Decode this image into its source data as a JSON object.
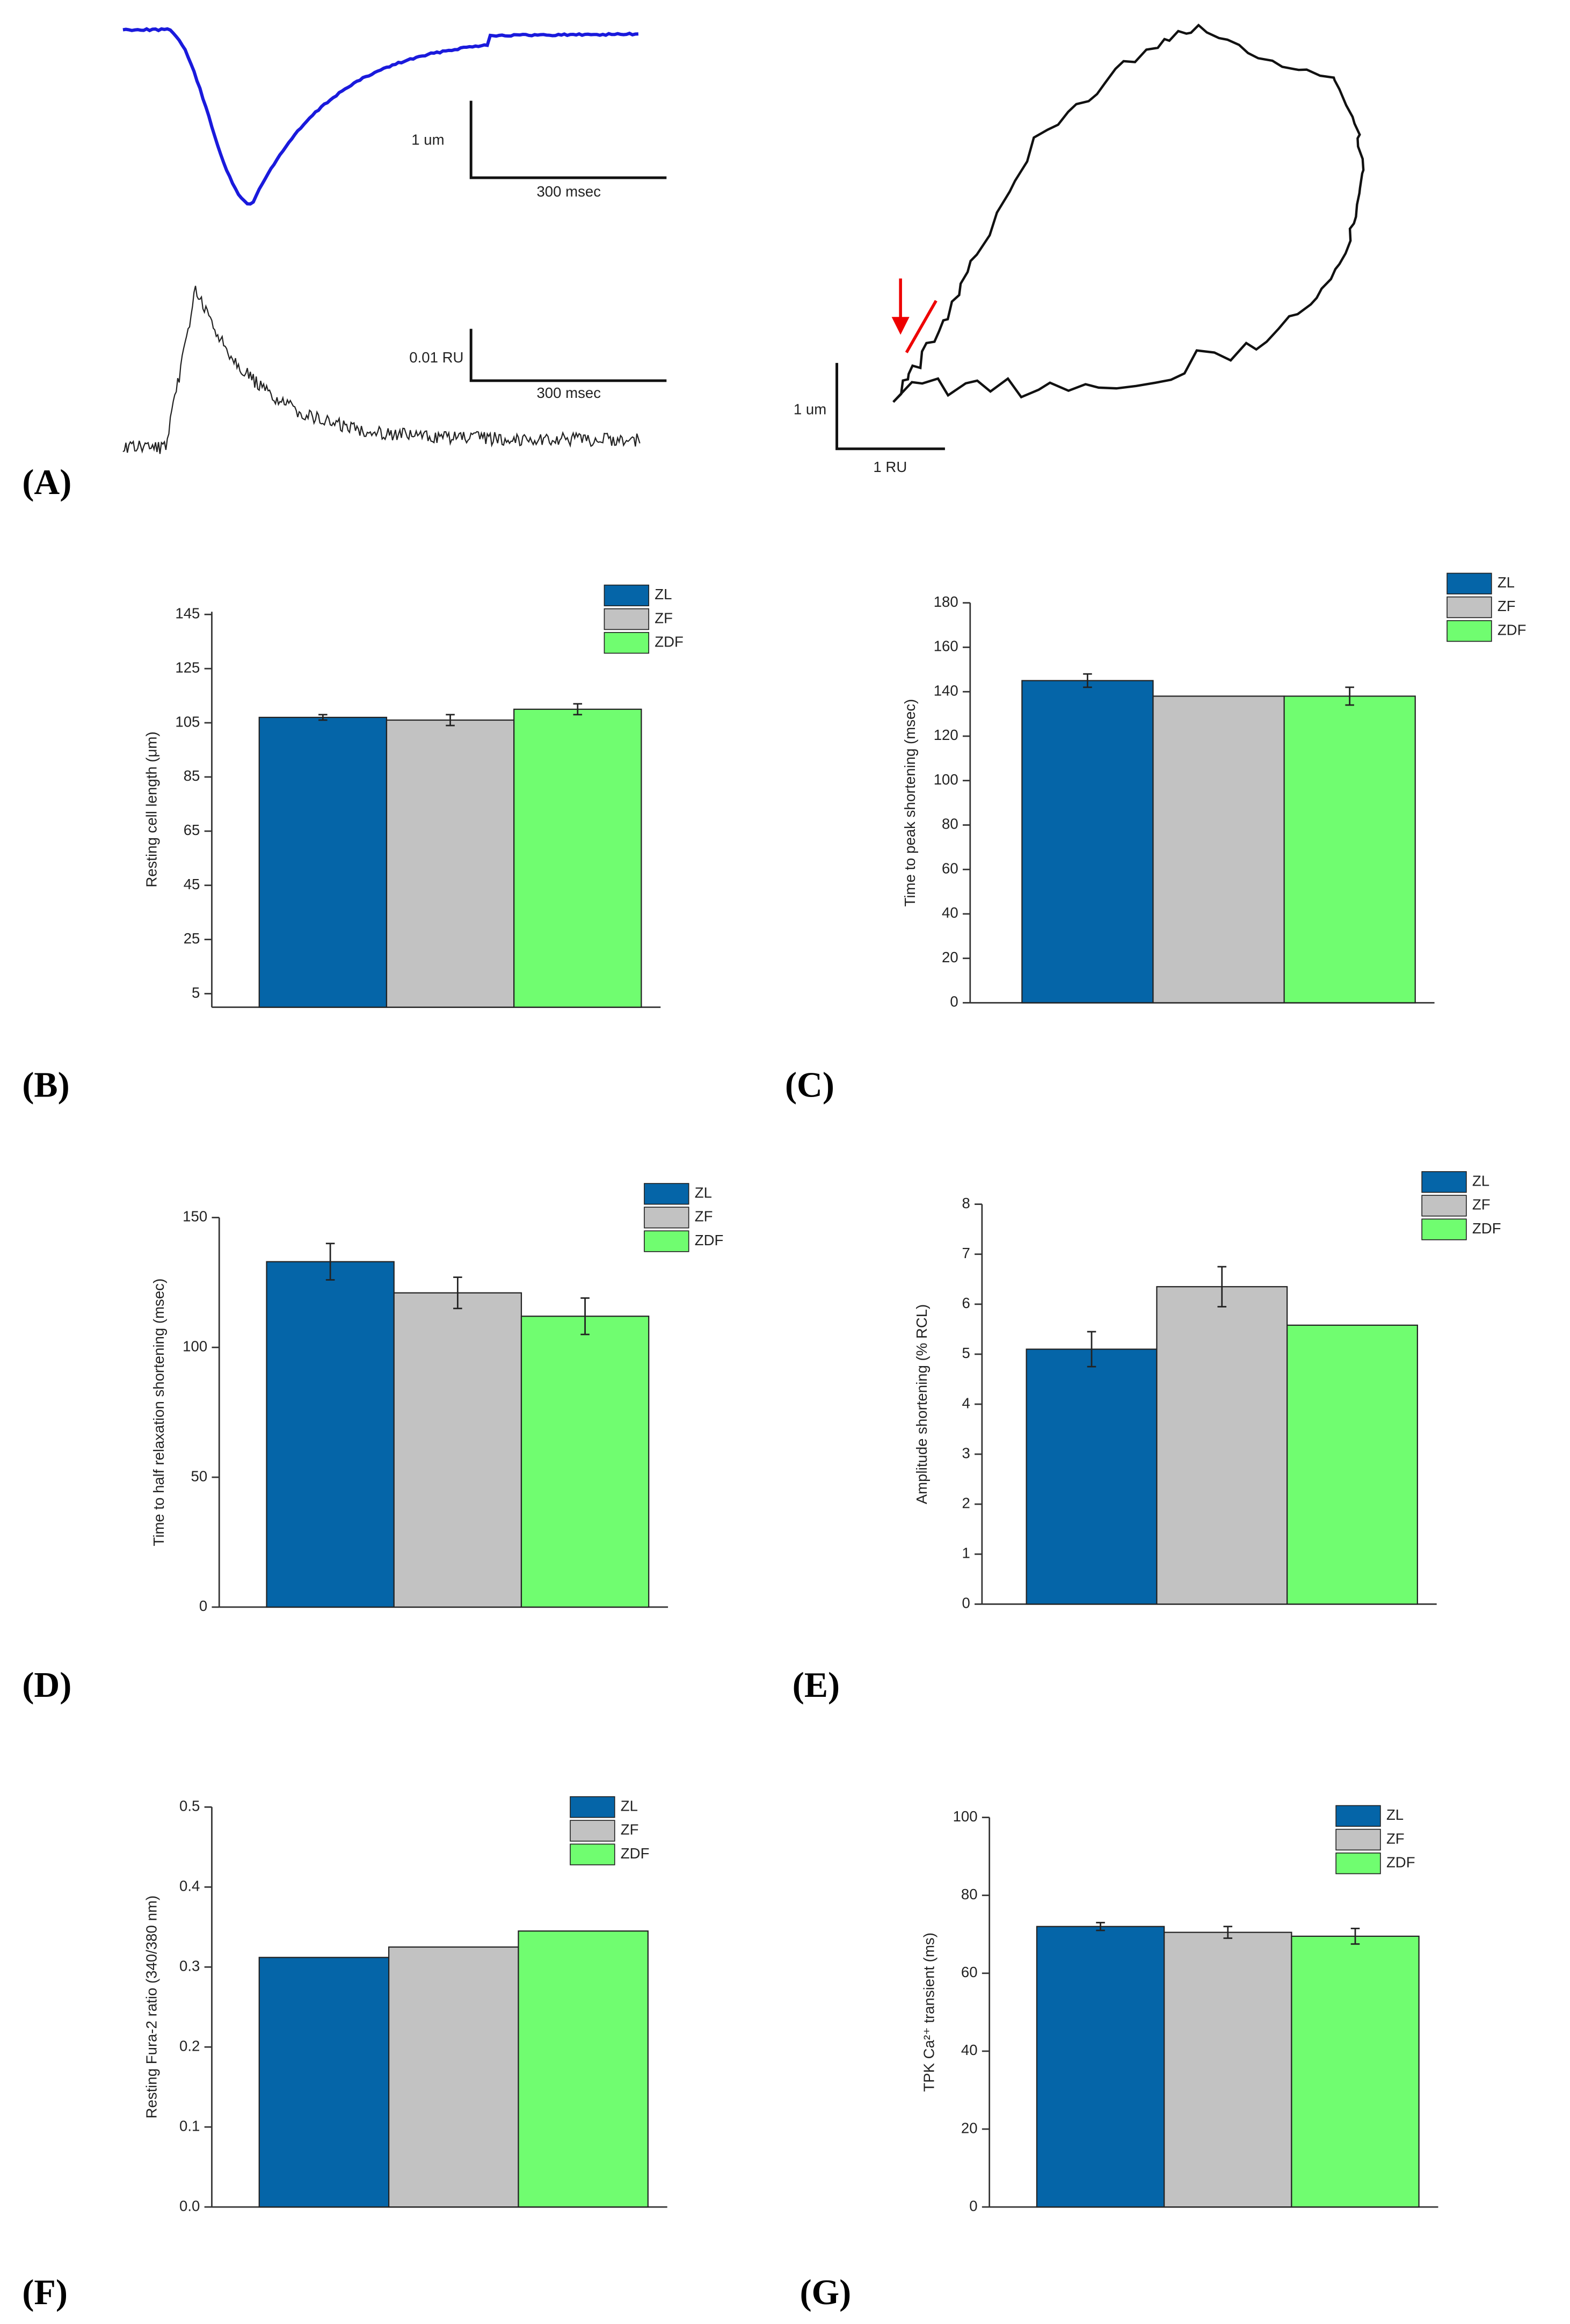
{
  "chart_data": [
    {
      "type": "trace",
      "panel": "(A)",
      "scale_labels": [
        "1 um",
        "300 msec",
        "0.01 RU",
        "300 msec",
        "1 um",
        "1 RU"
      ]
    },
    {
      "type": "bar",
      "panel": "(B)",
      "ylabel": "Resting cell length (μm)",
      "ylim": [
        0,
        146
      ],
      "yticks": [
        5,
        25,
        45,
        65,
        85,
        105,
        125,
        145
      ],
      "series": [
        {
          "name": "ZL",
          "color": "#0565a8",
          "values": [
            107
          ],
          "errors": [
            1
          ]
        },
        {
          "name": "ZF",
          "color": "#c2c2c2",
          "values": [
            106
          ],
          "errors": [
            2
          ]
        },
        {
          "name": "ZDF",
          "color": "#70fd70",
          "values": [
            110
          ],
          "errors": [
            2
          ]
        }
      ]
    },
    {
      "type": "bar",
      "panel": "(C)",
      "ylabel": "Time to peak shortening (msec)",
      "ylim": [
        0,
        180
      ],
      "yticks": [
        0,
        20,
        40,
        60,
        80,
        100,
        120,
        140,
        160,
        180
      ],
      "series": [
        {
          "name": "ZL",
          "color": "#0565a8",
          "values": [
            145
          ],
          "errors": [
            3
          ]
        },
        {
          "name": "ZF",
          "color": "#c2c2c2",
          "values": [
            138
          ],
          "errors": [
            0
          ]
        },
        {
          "name": "ZDF",
          "color": "#70fd70",
          "values": [
            138
          ],
          "errors": [
            4
          ]
        }
      ]
    },
    {
      "type": "bar",
      "panel": "(D)",
      "ylabel": "Time to half relaxation shortening (msec)",
      "ylim": [
        0,
        150
      ],
      "yticks": [
        0,
        50,
        100,
        150
      ],
      "series": [
        {
          "name": "ZL",
          "color": "#0565a8",
          "values": [
            133
          ],
          "errors": [
            7
          ]
        },
        {
          "name": "ZF",
          "color": "#c2c2c2",
          "values": [
            121
          ],
          "errors": [
            6
          ]
        },
        {
          "name": "ZDF",
          "color": "#70fd70",
          "values": [
            112
          ],
          "errors": [
            7
          ]
        }
      ]
    },
    {
      "type": "bar",
      "panel": "(E)",
      "ylabel": "Amplitude shortening (% RCL)",
      "ylim": [
        0,
        8
      ],
      "yticks": [
        0,
        1,
        2,
        3,
        4,
        5,
        6,
        7,
        8
      ],
      "series": [
        {
          "name": "ZL",
          "color": "#0565a8",
          "values": [
            5.1
          ],
          "errors": [
            0.35
          ]
        },
        {
          "name": "ZF",
          "color": "#c2c2c2",
          "values": [
            6.35
          ],
          "errors": [
            0.4
          ]
        },
        {
          "name": "ZDF",
          "color": "#70fd70",
          "values": [
            5.58
          ],
          "errors": [
            0
          ]
        }
      ]
    },
    {
      "type": "bar",
      "panel": "(F)",
      "ylabel": "Resting Fura-2 ratio (340/380 nm)",
      "ylim": [
        0,
        0.5
      ],
      "yticks": [
        {
          "value": 0,
          "label": "0.0"
        },
        0.1,
        0.2,
        0.3,
        0.4,
        0.5
      ],
      "series": [
        {
          "name": "ZL",
          "color": "#0565a8",
          "values": [
            0.312
          ],
          "errors": [
            0
          ]
        },
        {
          "name": "ZF",
          "color": "#c2c2c2",
          "values": [
            0.325
          ],
          "errors": [
            0
          ]
        },
        {
          "name": "ZDF",
          "color": "#70fd70",
          "values": [
            0.345
          ],
          "errors": [
            0
          ]
        }
      ]
    },
    {
      "type": "bar",
      "panel": "(G)",
      "ylabel": "TPK Ca²⁺ transient (ms)",
      "ylim": [
        0,
        100
      ],
      "yticks": [
        0,
        20,
        40,
        60,
        80,
        100
      ],
      "series": [
        {
          "name": "ZL",
          "color": "#0565a8",
          "values": [
            72
          ],
          "errors": [
            1
          ]
        },
        {
          "name": "ZF",
          "color": "#c2c2c2",
          "values": [
            70.5
          ],
          "errors": [
            1.5
          ]
        },
        {
          "name": "ZDF",
          "color": "#70fd70",
          "values": [
            69.5
          ],
          "errors": [
            2
          ]
        }
      ]
    }
  ]
}
